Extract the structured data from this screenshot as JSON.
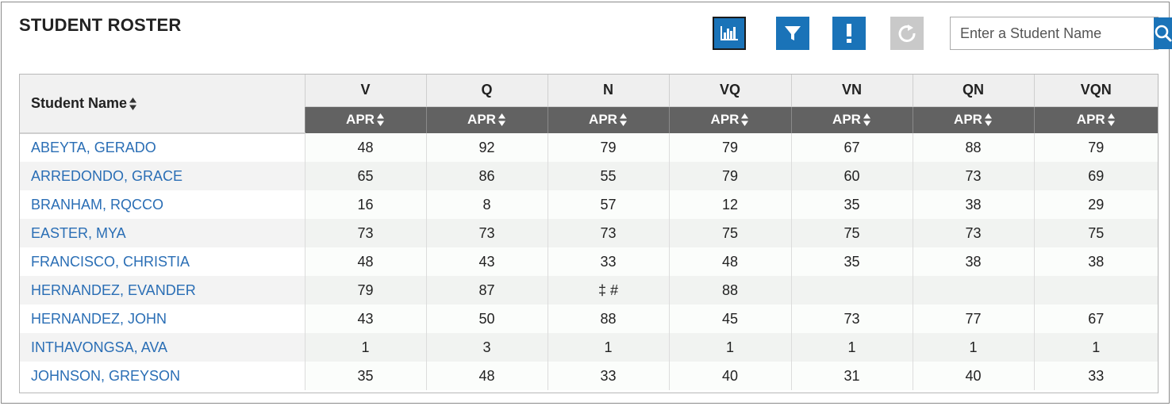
{
  "header": {
    "title": "STUDENT ROSTER",
    "search_placeholder": "Enter a Student Name"
  },
  "toolbar": [
    {
      "icon": "bar-chart-icon",
      "name": "chart-button"
    },
    {
      "icon": "filter-icon",
      "name": "filter-button"
    },
    {
      "icon": "exclamation-icon",
      "name": "alert-button"
    },
    {
      "icon": "refresh-icon",
      "name": "refresh-button"
    }
  ],
  "colors": {
    "accent": "#1a73b8",
    "link": "#2a6eb5",
    "subheader": "#626262",
    "disabled": "#c9c9c9"
  },
  "table": {
    "name_header": "Student Name",
    "columns": [
      "V",
      "Q",
      "N",
      "VQ",
      "VN",
      "QN",
      "VQN"
    ],
    "sub_header": "APR",
    "rows": [
      {
        "name": "ABEYTA, GERADO",
        "values": [
          "48",
          "92",
          "79",
          "79",
          "67",
          "88",
          "79"
        ]
      },
      {
        "name": "ARREDONDO, GRACE",
        "values": [
          "65",
          "86",
          "55",
          "79",
          "60",
          "73",
          "69"
        ]
      },
      {
        "name": "BRANHAM, RQCCO",
        "values": [
          "16",
          "8",
          "57",
          "12",
          "35",
          "38",
          "29"
        ]
      },
      {
        "name": "EASTER, MYA",
        "values": [
          "73",
          "73",
          "73",
          "75",
          "75",
          "73",
          "75"
        ]
      },
      {
        "name": "FRANCISCO, CHRISTIA",
        "values": [
          "48",
          "43",
          "33",
          "48",
          "35",
          "38",
          "38"
        ]
      },
      {
        "name": "HERNANDEZ, EVANDER",
        "values": [
          "79",
          "87",
          "‡ #",
          "88",
          "",
          "",
          ""
        ]
      },
      {
        "name": "HERNANDEZ, JOHN",
        "values": [
          "43",
          "50",
          "88",
          "45",
          "73",
          "77",
          "67"
        ]
      },
      {
        "name": "INTHAVONGSA, AVA",
        "values": [
          "1",
          "3",
          "1",
          "1",
          "1",
          "1",
          "1"
        ]
      },
      {
        "name": "JOHNSON, GREYSON",
        "values": [
          "35",
          "48",
          "33",
          "40",
          "31",
          "40",
          "33"
        ]
      }
    ]
  }
}
